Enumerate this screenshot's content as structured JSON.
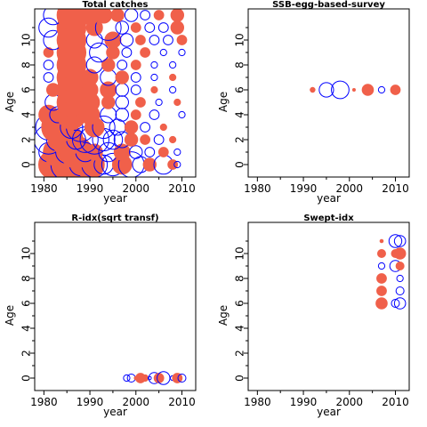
{
  "colors": {
    "positive": "#0000ff",
    "negative": "#f0604a"
  },
  "chart_data": [
    {
      "type": "scatter",
      "title": "Total catches",
      "xlabel": "year",
      "ylabel": "Age",
      "xlim": [
        1978,
        2013
      ],
      "ylim": [
        -1,
        12.5
      ],
      "xticks": [
        "1980",
        "1990",
        "2000",
        "2010"
      ],
      "yticks": [
        "0",
        "2",
        "4",
        "6",
        "8",
        "10"
      ],
      "points": [
        {
          "x": 1981,
          "y": 0,
          "r": 0.5,
          "sign": -1
        },
        {
          "x": 1982,
          "y": 0,
          "r": 0.9,
          "sign": -1
        },
        {
          "x": 1984,
          "y": 0,
          "r": 1.2,
          "sign": -1
        },
        {
          "x": 1985,
          "y": 0,
          "r": 1.0,
          "sign": 1
        },
        {
          "x": 1987,
          "y": 0,
          "r": 1.3,
          "sign": -1
        },
        {
          "x": 1988,
          "y": 0,
          "r": 0.7,
          "sign": 1
        },
        {
          "x": 1990,
          "y": 0,
          "r": 0.9,
          "sign": -1
        },
        {
          "x": 1991,
          "y": 0,
          "r": 0.8,
          "sign": 1
        },
        {
          "x": 1993,
          "y": 0,
          "r": 0.6,
          "sign": 1
        },
        {
          "x": 1995,
          "y": 0,
          "r": 0.7,
          "sign": 1
        },
        {
          "x": 1997,
          "y": 0,
          "r": 0.6,
          "sign": -1
        },
        {
          "x": 1999,
          "y": 0,
          "r": 0.8,
          "sign": 1
        },
        {
          "x": 2001,
          "y": 0,
          "r": 0.5,
          "sign": 1
        },
        {
          "x": 2003,
          "y": 0,
          "r": 0.4,
          "sign": -1
        },
        {
          "x": 2006,
          "y": 0,
          "r": 0.6,
          "sign": 1
        },
        {
          "x": 2008,
          "y": 0,
          "r": 0.3,
          "sign": -1
        },
        {
          "x": 2009,
          "y": 0,
          "r": 0.2,
          "sign": 1
        },
        {
          "x": 1981,
          "y": 1,
          "r": 0.6,
          "sign": 1
        },
        {
          "x": 1983,
          "y": 1,
          "r": 0.9,
          "sign": -1
        },
        {
          "x": 1985,
          "y": 1,
          "r": 0.7,
          "sign": 1
        },
        {
          "x": 1987,
          "y": 1,
          "r": 1.0,
          "sign": -1
        },
        {
          "x": 1989,
          "y": 1,
          "r": 0.6,
          "sign": 1
        },
        {
          "x": 1991,
          "y": 1,
          "r": 0.5,
          "sign": -1
        },
        {
          "x": 1994,
          "y": 1,
          "r": 0.6,
          "sign": 1
        },
        {
          "x": 1997,
          "y": 1,
          "r": 0.5,
          "sign": -1
        },
        {
          "x": 2000,
          "y": 1,
          "r": 0.4,
          "sign": 1
        },
        {
          "x": 2003,
          "y": 1,
          "r": 0.3,
          "sign": 1
        },
        {
          "x": 2006,
          "y": 1,
          "r": 0.3,
          "sign": -1
        },
        {
          "x": 2009,
          "y": 1,
          "r": 0.2,
          "sign": 1
        },
        {
          "x": 1981,
          "y": 2,
          "r": 0.9,
          "sign": 1
        },
        {
          "x": 1983,
          "y": 2,
          "r": 0.7,
          "sign": 1
        },
        {
          "x": 1985,
          "y": 2,
          "r": 1.0,
          "sign": -1
        },
        {
          "x": 1987,
          "y": 2,
          "r": 0.6,
          "sign": 1
        },
        {
          "x": 1989,
          "y": 2,
          "r": 0.8,
          "sign": 1
        },
        {
          "x": 1991,
          "y": 2,
          "r": 0.9,
          "sign": 1
        },
        {
          "x": 1993,
          "y": 2,
          "r": 0.7,
          "sign": 1
        },
        {
          "x": 1995,
          "y": 2,
          "r": 0.6,
          "sign": 1
        },
        {
          "x": 1997,
          "y": 2,
          "r": 0.5,
          "sign": 1
        },
        {
          "x": 1999,
          "y": 2,
          "r": 0.4,
          "sign": -1
        },
        {
          "x": 2002,
          "y": 2,
          "r": 0.3,
          "sign": -1
        },
        {
          "x": 2005,
          "y": 2,
          "r": 0.3,
          "sign": 1
        },
        {
          "x": 2008,
          "y": 2,
          "r": 0.2,
          "sign": -1
        },
        {
          "x": 1981,
          "y": 3,
          "r": 0.8,
          "sign": 1
        },
        {
          "x": 1983,
          "y": 3,
          "r": 1.0,
          "sign": -1
        },
        {
          "x": 1986,
          "y": 3,
          "r": 0.7,
          "sign": 1
        },
        {
          "x": 1988,
          "y": 3,
          "r": 0.9,
          "sign": 1
        },
        {
          "x": 1991,
          "y": 3,
          "r": 0.6,
          "sign": -1
        },
        {
          "x": 1993,
          "y": 3,
          "r": 0.7,
          "sign": 1
        },
        {
          "x": 1996,
          "y": 3,
          "r": 0.5,
          "sign": 1
        },
        {
          "x": 1999,
          "y": 3,
          "r": 0.4,
          "sign": -1
        },
        {
          "x": 2002,
          "y": 3,
          "r": 0.3,
          "sign": 1
        },
        {
          "x": 2006,
          "y": 3,
          "r": 0.2,
          "sign": -1
        },
        {
          "x": 1981,
          "y": 4,
          "r": 0.6,
          "sign": -1
        },
        {
          "x": 1983,
          "y": 4,
          "r": 0.5,
          "sign": 1
        },
        {
          "x": 1986,
          "y": 4,
          "r": 0.9,
          "sign": -1
        },
        {
          "x": 1990,
          "y": 4,
          "r": 0.6,
          "sign": -1
        },
        {
          "x": 1994,
          "y": 4,
          "r": 0.5,
          "sign": 1
        },
        {
          "x": 1997,
          "y": 4,
          "r": 0.4,
          "sign": 1
        },
        {
          "x": 2000,
          "y": 4,
          "r": 0.3,
          "sign": -1
        },
        {
          "x": 2004,
          "y": 4,
          "r": 0.3,
          "sign": 1
        },
        {
          "x": 2010,
          "y": 4,
          "r": 0.2,
          "sign": 1
        },
        {
          "x": 1982,
          "y": 5,
          "r": 0.5,
          "sign": 1
        },
        {
          "x": 1986,
          "y": 5,
          "r": 0.9,
          "sign": -1
        },
        {
          "x": 1990,
          "y": 5,
          "r": 0.6,
          "sign": -1
        },
        {
          "x": 1994,
          "y": 5,
          "r": 0.4,
          "sign": -1
        },
        {
          "x": 1997,
          "y": 5,
          "r": 0.4,
          "sign": 1
        },
        {
          "x": 2001,
          "y": 5,
          "r": 0.3,
          "sign": -1
        },
        {
          "x": 2005,
          "y": 5,
          "r": 0.2,
          "sign": 1
        },
        {
          "x": 2009,
          "y": 5,
          "r": 0.2,
          "sign": -1
        },
        {
          "x": 1982,
          "y": 6,
          "r": 0.4,
          "sign": -1
        },
        {
          "x": 1986,
          "y": 6,
          "r": 0.9,
          "sign": -1
        },
        {
          "x": 1990,
          "y": 6,
          "r": 0.5,
          "sign": -1
        },
        {
          "x": 1994,
          "y": 6,
          "r": 0.5,
          "sign": -1
        },
        {
          "x": 1997,
          "y": 6,
          "r": 0.4,
          "sign": 1
        },
        {
          "x": 2000,
          "y": 6,
          "r": 0.3,
          "sign": 1
        },
        {
          "x": 2004,
          "y": 6,
          "r": 0.2,
          "sign": -1
        },
        {
          "x": 2008,
          "y": 6,
          "r": 0.2,
          "sign": 1
        },
        {
          "x": 1981,
          "y": 7,
          "r": 0.3,
          "sign": 1
        },
        {
          "x": 1986,
          "y": 7,
          "r": 0.9,
          "sign": -1
        },
        {
          "x": 1990,
          "y": 7,
          "r": 0.5,
          "sign": -1
        },
        {
          "x": 1994,
          "y": 7,
          "r": 0.5,
          "sign": 1
        },
        {
          "x": 1997,
          "y": 7,
          "r": 0.4,
          "sign": -1
        },
        {
          "x": 2000,
          "y": 7,
          "r": 0.3,
          "sign": 1
        },
        {
          "x": 2004,
          "y": 7,
          "r": 0.2,
          "sign": 1
        },
        {
          "x": 2008,
          "y": 7,
          "r": 0.2,
          "sign": -1
        },
        {
          "x": 1981,
          "y": 8,
          "r": 0.3,
          "sign": 1
        },
        {
          "x": 1986,
          "y": 8,
          "r": 0.9,
          "sign": -1
        },
        {
          "x": 1991,
          "y": 8,
          "r": 0.5,
          "sign": 1
        },
        {
          "x": 1994,
          "y": 8,
          "r": 0.4,
          "sign": -1
        },
        {
          "x": 1997,
          "y": 8,
          "r": 0.3,
          "sign": 1
        },
        {
          "x": 2000,
          "y": 8,
          "r": 0.3,
          "sign": -1
        },
        {
          "x": 2004,
          "y": 8,
          "r": 0.2,
          "sign": 1
        },
        {
          "x": 2008,
          "y": 8,
          "r": 0.2,
          "sign": 1
        },
        {
          "x": 1981,
          "y": 9,
          "r": 0.3,
          "sign": -1
        },
        {
          "x": 1986,
          "y": 9,
          "r": 0.9,
          "sign": -1
        },
        {
          "x": 1992,
          "y": 9,
          "r": 0.6,
          "sign": 1
        },
        {
          "x": 1995,
          "y": 9,
          "r": 0.4,
          "sign": -1
        },
        {
          "x": 1998,
          "y": 9,
          "r": 0.3,
          "sign": 1
        },
        {
          "x": 2002,
          "y": 9,
          "r": 0.3,
          "sign": -1
        },
        {
          "x": 2006,
          "y": 9,
          "r": 0.2,
          "sign": 1
        },
        {
          "x": 2010,
          "y": 9,
          "r": 0.2,
          "sign": 1
        },
        {
          "x": 1982,
          "y": 10,
          "r": 0.6,
          "sign": 1
        },
        {
          "x": 1986,
          "y": 10,
          "r": 0.9,
          "sign": -1
        },
        {
          "x": 1991,
          "y": 10,
          "r": 0.5,
          "sign": 1
        },
        {
          "x": 1995,
          "y": 10,
          "r": 0.5,
          "sign": -1
        },
        {
          "x": 1998,
          "y": 10,
          "r": 0.4,
          "sign": 1
        },
        {
          "x": 2001,
          "y": 10,
          "r": 0.3,
          "sign": -1
        },
        {
          "x": 2004,
          "y": 10,
          "r": 0.3,
          "sign": 1
        },
        {
          "x": 2007,
          "y": 10,
          "r": 0.3,
          "sign": 1
        },
        {
          "x": 2010,
          "y": 10,
          "r": 0.3,
          "sign": -1
        },
        {
          "x": 1981,
          "y": 11,
          "r": 0.6,
          "sign": 1
        },
        {
          "x": 1986,
          "y": 11,
          "r": 0.9,
          "sign": -1
        },
        {
          "x": 1991,
          "y": 11,
          "r": 0.5,
          "sign": -1
        },
        {
          "x": 1994,
          "y": 11,
          "r": 0.8,
          "sign": 1
        },
        {
          "x": 1997,
          "y": 11,
          "r": 0.4,
          "sign": 1
        },
        {
          "x": 2000,
          "y": 11,
          "r": 0.3,
          "sign": -1
        },
        {
          "x": 2003,
          "y": 11,
          "r": 0.3,
          "sign": 1
        },
        {
          "x": 2006,
          "y": 11,
          "r": 0.3,
          "sign": 1
        },
        {
          "x": 2009,
          "y": 11,
          "r": 0.4,
          "sign": -1
        },
        {
          "x": 1982,
          "y": 12,
          "r": 0.6,
          "sign": 1
        },
        {
          "x": 1986,
          "y": 12,
          "r": 0.9,
          "sign": -1
        },
        {
          "x": 1990,
          "y": 12,
          "r": 0.6,
          "sign": -1
        },
        {
          "x": 1993,
          "y": 12,
          "r": 0.5,
          "sign": -1
        },
        {
          "x": 1996,
          "y": 12,
          "r": 0.4,
          "sign": -1
        },
        {
          "x": 1999,
          "y": 12,
          "r": 0.4,
          "sign": 1
        },
        {
          "x": 2002,
          "y": 12,
          "r": 0.3,
          "sign": 1
        },
        {
          "x": 2005,
          "y": 12,
          "r": 0.3,
          "sign": -1
        },
        {
          "x": 2009,
          "y": 12,
          "r": 0.4,
          "sign": -1
        }
      ]
    },
    {
      "type": "scatter",
      "title": "SSB-egg-based-survey",
      "xlabel": "year",
      "ylabel": "Age",
      "xlim": [
        1978,
        2013
      ],
      "ylim": [
        -1,
        12.5
      ],
      "xticks": [
        "1980",
        "1990",
        "2000",
        "2010"
      ],
      "yticks": [
        "0",
        "2",
        "4",
        "6",
        "8",
        "10"
      ],
      "points": [
        {
          "x": 1992,
          "y": 6,
          "r": 0.15,
          "sign": -1
        },
        {
          "x": 1995,
          "y": 6,
          "r": 0.45,
          "sign": 1
        },
        {
          "x": 1998,
          "y": 6,
          "r": 0.55,
          "sign": 1
        },
        {
          "x": 2001,
          "y": 6,
          "r": 0.08,
          "sign": -1
        },
        {
          "x": 2004,
          "y": 6,
          "r": 0.35,
          "sign": -1
        },
        {
          "x": 2007,
          "y": 6,
          "r": 0.2,
          "sign": 1
        },
        {
          "x": 2010,
          "y": 6,
          "r": 0.3,
          "sign": -1
        }
      ]
    },
    {
      "type": "scatter",
      "title": "R-idx(sqrt transf)",
      "xlabel": "year",
      "ylabel": "Age",
      "xlim": [
        1978,
        2013
      ],
      "ylim": [
        -1,
        12.5
      ],
      "xticks": [
        "1980",
        "1990",
        "2000",
        "2010"
      ],
      "yticks": [
        "0",
        "2",
        "4",
        "6",
        "8",
        "10"
      ],
      "points": [
        {
          "x": 1998,
          "y": 0,
          "r": 0.2,
          "sign": 1
        },
        {
          "x": 1999,
          "y": 0,
          "r": 0.25,
          "sign": 1
        },
        {
          "x": 2000,
          "y": 0,
          "r": 0.1,
          "sign": -1
        },
        {
          "x": 2001,
          "y": 0,
          "r": 0.3,
          "sign": -1
        },
        {
          "x": 2002,
          "y": 0,
          "r": 0.2,
          "sign": -1
        },
        {
          "x": 2003,
          "y": 0,
          "r": 0.1,
          "sign": 1
        },
        {
          "x": 2004,
          "y": 0,
          "r": 0.35,
          "sign": 1
        },
        {
          "x": 2005,
          "y": 0,
          "r": 0.3,
          "sign": -1
        },
        {
          "x": 2006,
          "y": 0,
          "r": 0.4,
          "sign": 1
        },
        {
          "x": 2008,
          "y": 0,
          "r": 0.15,
          "sign": 1
        },
        {
          "x": 2009,
          "y": 0,
          "r": 0.3,
          "sign": -1
        },
        {
          "x": 2010,
          "y": 0,
          "r": 0.25,
          "sign": 1
        }
      ]
    },
    {
      "type": "scatter",
      "title": "Swept-idx",
      "xlabel": "year",
      "ylabel": "Age",
      "xlim": [
        1978,
        2013
      ],
      "ylim": [
        -1,
        12.5
      ],
      "xticks": [
        "1980",
        "1990",
        "2000",
        "2010"
      ],
      "yticks": [
        "0",
        "2",
        "4",
        "6",
        "8",
        "10"
      ],
      "points": [
        {
          "x": 2007,
          "y": 6,
          "r": 0.35,
          "sign": -1
        },
        {
          "x": 2007,
          "y": 7,
          "r": 0.3,
          "sign": -1
        },
        {
          "x": 2007,
          "y": 8,
          "r": 0.3,
          "sign": -1
        },
        {
          "x": 2007,
          "y": 9,
          "r": 0.2,
          "sign": 1
        },
        {
          "x": 2007,
          "y": 10,
          "r": 0.25,
          "sign": -1
        },
        {
          "x": 2007,
          "y": 11,
          "r": 0.1,
          "sign": -1
        },
        {
          "x": 2010,
          "y": 6,
          "r": 0.25,
          "sign": 1
        },
        {
          "x": 2010,
          "y": 9,
          "r": 0.35,
          "sign": 1
        },
        {
          "x": 2010,
          "y": 10,
          "r": 0.25,
          "sign": -1
        },
        {
          "x": 2010,
          "y": 11,
          "r": 0.4,
          "sign": 1
        },
        {
          "x": 2011,
          "y": 6,
          "r": 0.35,
          "sign": 1
        },
        {
          "x": 2011,
          "y": 7,
          "r": 0.25,
          "sign": 1
        },
        {
          "x": 2011,
          "y": 8,
          "r": 0.2,
          "sign": 1
        },
        {
          "x": 2011,
          "y": 9,
          "r": 0.25,
          "sign": -1
        },
        {
          "x": 2011,
          "y": 10,
          "r": 0.35,
          "sign": -1
        },
        {
          "x": 2011,
          "y": 11,
          "r": 0.35,
          "sign": 1
        }
      ]
    }
  ]
}
